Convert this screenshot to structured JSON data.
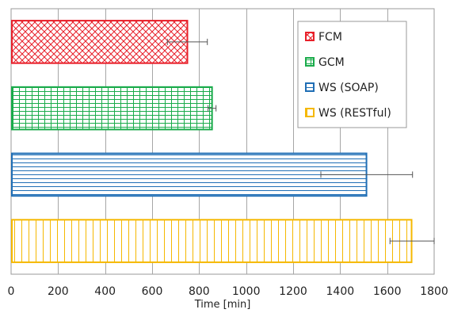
{
  "chart_data": {
    "type": "bar",
    "orientation": "horizontal",
    "title": "",
    "xlabel": "Time [min]",
    "ylabel": "",
    "xlim": [
      0,
      1800
    ],
    "x_ticks": [
      0,
      200,
      400,
      600,
      800,
      1000,
      1200,
      1400,
      1600,
      1800
    ],
    "x_tick_labels": [
      "0",
      "200",
      "400",
      "600",
      "800",
      "1000",
      "1200",
      "1400",
      "1600",
      "1800"
    ],
    "grid": "vertical",
    "legend_position": "top-right",
    "series": [
      {
        "name": "FCM",
        "value": 750,
        "error_low": 665,
        "error_high": 835,
        "color": "#e8202a",
        "pattern": "crosshatch"
      },
      {
        "name": "GCM",
        "value": 855,
        "error_low": 838,
        "error_high": 872,
        "color": "#1aab4b",
        "pattern": "grid"
      },
      {
        "name": "WS (SOAP)",
        "value": 1512,
        "error_low": 1318,
        "error_high": 1708,
        "color": "#1f6eb5",
        "pattern": "horizontal-lines"
      },
      {
        "name": "WS (RESTful)",
        "value": 1704,
        "error_low": 1612,
        "error_high": 1800,
        "color": "#f5b800",
        "pattern": "vertical-lines"
      }
    ]
  }
}
